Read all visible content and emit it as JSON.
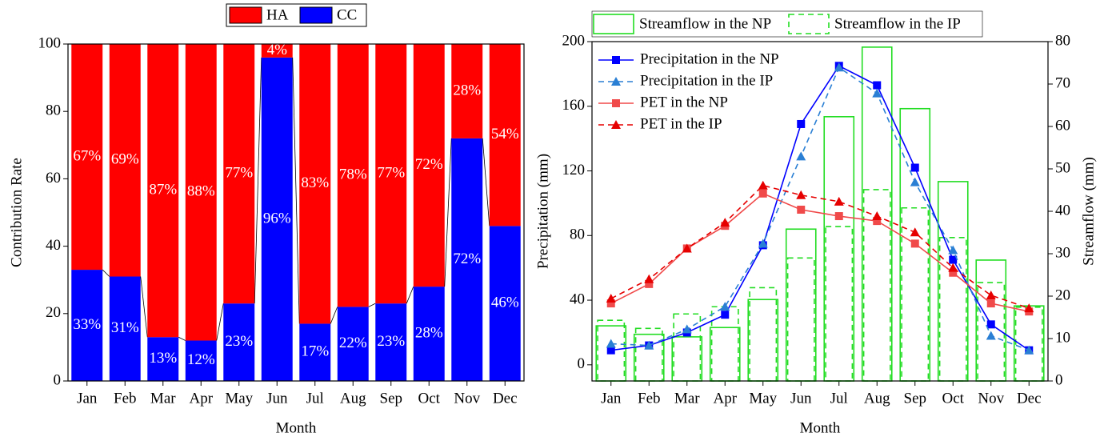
{
  "chart_data": [
    {
      "type": "stacked-bar",
      "categories": [
        "Jan",
        "Feb",
        "Mar",
        "Apr",
        "May",
        "Jun",
        "Jul",
        "Aug",
        "Sep",
        "Oct",
        "Nov",
        "Dec"
      ],
      "series": [
        {
          "name": "CC",
          "color": "#0000ff",
          "values": [
            33,
            31,
            13,
            12,
            23,
            96,
            17,
            22,
            23,
            28,
            72,
            46
          ],
          "value_labels": [
            "33%",
            "31%",
            "13%",
            "12%",
            "23%",
            "96%",
            "17%",
            "22%",
            "23%",
            "28%",
            "72%",
            "46%"
          ]
        },
        {
          "name": "HA",
          "color": "#ff0000",
          "values": [
            67,
            69,
            87,
            88,
            77,
            4,
            83,
            78,
            77,
            72,
            28,
            54
          ],
          "value_labels": [
            "67%",
            "69%",
            "87%",
            "88%",
            "77%",
            "4%",
            "83%",
            "78%",
            "77%",
            "72%",
            "28%",
            "54%"
          ]
        }
      ],
      "ylim": [
        0,
        100
      ],
      "yticks": [
        0,
        20,
        40,
        60,
        80,
        100
      ],
      "ylabel": "Contribution Rate",
      "xlabel": "Month"
    },
    {
      "type": "combo",
      "categories": [
        "Jan",
        "Feb",
        "Mar",
        "Apr",
        "May",
        "Jun",
        "Jul",
        "Aug",
        "Sep",
        "Oct",
        "Nov",
        "Dec"
      ],
      "series": [
        {
          "name": "Streamflow in the NP",
          "type": "bar",
          "axis": "y2",
          "color": "#22dd22",
          "dash": false,
          "values": [
            13,
            11,
            10.4,
            12.6,
            19.2,
            35.8,
            62.3,
            78.7,
            64.2,
            47,
            28.5,
            17.7
          ]
        },
        {
          "name": "Streamflow in the IP",
          "type": "bar",
          "axis": "y2",
          "color": "#22dd22",
          "dash": true,
          "values": [
            14.3,
            12.4,
            15.8,
            17.5,
            22,
            29,
            36.4,
            45.1,
            40.8,
            33.8,
            23.2,
            17.4
          ]
        },
        {
          "name": "Precipitation in the NP",
          "type": "line",
          "color": "#0000ff",
          "dash": false,
          "marker": "square",
          "values": [
            9,
            12,
            20,
            31,
            74,
            149,
            185,
            173,
            122,
            65,
            25,
            9
          ]
        },
        {
          "name": "Precipitation in the IP",
          "type": "line",
          "color": "#2a7fd4",
          "dash": true,
          "marker": "triangle",
          "values": [
            13,
            12,
            22,
            36,
            75,
            129,
            184,
            168,
            113,
            71,
            18,
            9
          ]
        },
        {
          "name": "PET in the NP",
          "type": "line",
          "color": "#f04a4a",
          "dash": false,
          "marker": "square",
          "values": [
            38,
            50,
            72,
            86,
            106,
            96,
            92,
            89,
            75,
            57,
            38,
            33
          ]
        },
        {
          "name": "PET in the IP",
          "type": "line",
          "color": "#e60000",
          "dash": true,
          "marker": "triangle",
          "values": [
            41,
            53,
            72,
            88,
            111,
            105,
            101,
            92,
            82,
            60,
            43,
            35
          ]
        }
      ],
      "ylim": [
        -10,
        200
      ],
      "yticks": [
        0,
        40,
        80,
        120,
        160,
        200
      ],
      "y2lim": [
        0,
        80
      ],
      "y2ticks": [
        0,
        10,
        20,
        30,
        40,
        50,
        60,
        70,
        80
      ],
      "ylabel": "Precipitation (mm)",
      "y2label": "Streamflow (mm)",
      "xlabel": "Month"
    }
  ]
}
